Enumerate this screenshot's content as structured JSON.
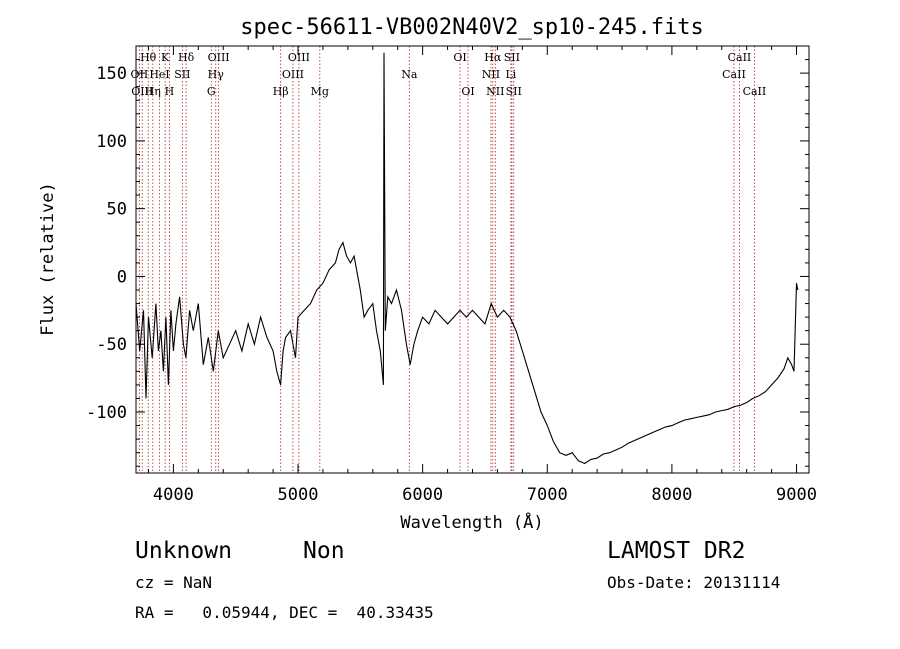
{
  "header": {
    "title": "spec-56611-VB002N40V2_sp10-245.fits"
  },
  "chart_data": {
    "type": "line",
    "title": "spec-56611-VB002N40V2_sp10-245.fits",
    "xlabel": "Wavelength (Å)",
    "ylabel": "Flux (relative)",
    "xlim": [
      3700,
      9100
    ],
    "ylim": [
      -145,
      170
    ],
    "x_ticks": [
      4000,
      5000,
      6000,
      7000,
      8000,
      9000
    ],
    "y_ticks": [
      -100,
      -50,
      0,
      50,
      100,
      150
    ],
    "grid": false,
    "series": [
      {
        "color": "#000000",
        "points": [
          [
            3700,
            -20
          ],
          [
            3730,
            -55
          ],
          [
            3760,
            -25
          ],
          [
            3780,
            -90
          ],
          [
            3800,
            -30
          ],
          [
            3830,
            -60
          ],
          [
            3860,
            -20
          ],
          [
            3880,
            -55
          ],
          [
            3900,
            -40
          ],
          [
            3920,
            -70
          ],
          [
            3940,
            -30
          ],
          [
            3960,
            -80
          ],
          [
            3980,
            -25
          ],
          [
            4000,
            -55
          ],
          [
            4020,
            -35
          ],
          [
            4050,
            -15
          ],
          [
            4080,
            -50
          ],
          [
            4100,
            -60
          ],
          [
            4130,
            -25
          ],
          [
            4160,
            -40
          ],
          [
            4200,
            -20
          ],
          [
            4240,
            -65
          ],
          [
            4280,
            -45
          ],
          [
            4320,
            -70
          ],
          [
            4360,
            -40
          ],
          [
            4400,
            -60
          ],
          [
            4450,
            -50
          ],
          [
            4500,
            -40
          ],
          [
            4550,
            -55
          ],
          [
            4600,
            -35
          ],
          [
            4650,
            -50
          ],
          [
            4700,
            -30
          ],
          [
            4750,
            -45
          ],
          [
            4800,
            -55
          ],
          [
            4830,
            -70
          ],
          [
            4860,
            -80
          ],
          [
            4880,
            -55
          ],
          [
            4900,
            -45
          ],
          [
            4940,
            -40
          ],
          [
            4980,
            -60
          ],
          [
            5000,
            -30
          ],
          [
            5050,
            -25
          ],
          [
            5100,
            -20
          ],
          [
            5150,
            -10
          ],
          [
            5200,
            -5
          ],
          [
            5250,
            5
          ],
          [
            5300,
            10
          ],
          [
            5330,
            20
          ],
          [
            5360,
            25
          ],
          [
            5390,
            15
          ],
          [
            5420,
            10
          ],
          [
            5450,
            15
          ],
          [
            5480,
            0
          ],
          [
            5500,
            -10
          ],
          [
            5530,
            -30
          ],
          [
            5560,
            -25
          ],
          [
            5600,
            -20
          ],
          [
            5630,
            -40
          ],
          [
            5660,
            -55
          ],
          [
            5685,
            -80
          ],
          [
            5690,
            165
          ],
          [
            5695,
            70
          ],
          [
            5700,
            -40
          ],
          [
            5720,
            -15
          ],
          [
            5750,
            -20
          ],
          [
            5790,
            -10
          ],
          [
            5830,
            -25
          ],
          [
            5870,
            -50
          ],
          [
            5900,
            -65
          ],
          [
            5930,
            -50
          ],
          [
            5960,
            -40
          ],
          [
            6000,
            -30
          ],
          [
            6050,
            -35
          ],
          [
            6100,
            -25
          ],
          [
            6150,
            -30
          ],
          [
            6200,
            -35
          ],
          [
            6250,
            -30
          ],
          [
            6300,
            -25
          ],
          [
            6350,
            -30
          ],
          [
            6400,
            -25
          ],
          [
            6450,
            -30
          ],
          [
            6500,
            -35
          ],
          [
            6550,
            -20
          ],
          [
            6600,
            -30
          ],
          [
            6650,
            -25
          ],
          [
            6700,
            -30
          ],
          [
            6750,
            -40
          ],
          [
            6800,
            -55
          ],
          [
            6850,
            -70
          ],
          [
            6900,
            -85
          ],
          [
            6950,
            -100
          ],
          [
            7000,
            -110
          ],
          [
            7050,
            -122
          ],
          [
            7100,
            -130
          ],
          [
            7150,
            -132
          ],
          [
            7200,
            -130
          ],
          [
            7250,
            -136
          ],
          [
            7300,
            -138
          ],
          [
            7350,
            -135
          ],
          [
            7400,
            -134
          ],
          [
            7450,
            -131
          ],
          [
            7500,
            -130
          ],
          [
            7550,
            -128
          ],
          [
            7600,
            -126
          ],
          [
            7650,
            -123
          ],
          [
            7700,
            -121
          ],
          [
            7750,
            -119
          ],
          [
            7800,
            -117
          ],
          [
            7850,
            -115
          ],
          [
            7900,
            -113
          ],
          [
            7950,
            -111
          ],
          [
            8000,
            -110
          ],
          [
            8050,
            -108
          ],
          [
            8100,
            -106
          ],
          [
            8150,
            -105
          ],
          [
            8200,
            -104
          ],
          [
            8250,
            -103
          ],
          [
            8300,
            -102
          ],
          [
            8350,
            -100
          ],
          [
            8400,
            -99
          ],
          [
            8450,
            -98
          ],
          [
            8500,
            -96
          ],
          [
            8550,
            -95
          ],
          [
            8600,
            -93
          ],
          [
            8650,
            -90
          ],
          [
            8700,
            -88
          ],
          [
            8750,
            -85
          ],
          [
            8800,
            -80
          ],
          [
            8850,
            -75
          ],
          [
            8900,
            -68
          ],
          [
            8930,
            -60
          ],
          [
            8960,
            -65
          ],
          [
            8980,
            -70
          ],
          [
            9000,
            -5
          ],
          [
            9010,
            -10
          ]
        ]
      }
    ],
    "lines": [
      {
        "label": "Hθ",
        "x": 3798,
        "row": 0
      },
      {
        "label": "OII",
        "x": 3727,
        "row": 1
      },
      {
        "label": "HeI",
        "x": 3889,
        "row": 1
      },
      {
        "label": "OIII",
        "x": 3750,
        "row": 2
      },
      {
        "label": "Hη",
        "x": 3835,
        "row": 2
      },
      {
        "label": "K",
        "x": 3934,
        "row": 0
      },
      {
        "label": "H",
        "x": 3968,
        "row": 2
      },
      {
        "label": "SII",
        "x": 4072,
        "row": 1
      },
      {
        "label": "Hδ",
        "x": 4102,
        "row": 0
      },
      {
        "label": "OIII",
        "x": 4363,
        "row": 0
      },
      {
        "label": "Hγ",
        "x": 4340,
        "row": 1
      },
      {
        "label": "G",
        "x": 4304,
        "row": 2
      },
      {
        "label": "OIII",
        "x": 5007,
        "row": 0
      },
      {
        "label": "OIII",
        "x": 4959,
        "row": 1
      },
      {
        "label": "Hβ",
        "x": 4861,
        "row": 2
      },
      {
        "label": "Mg",
        "x": 5175,
        "row": 2
      },
      {
        "label": "Na",
        "x": 5893,
        "row": 1
      },
      {
        "label": "OI",
        "x": 6300,
        "row": 0
      },
      {
        "label": "OI",
        "x": 6364,
        "row": 2
      },
      {
        "label": "Hα",
        "x": 6563,
        "row": 0
      },
      {
        "label": "SII",
        "x": 6716,
        "row": 0
      },
      {
        "label": "NII",
        "x": 6548,
        "row": 1
      },
      {
        "label": "Li",
        "x": 6708,
        "row": 1
      },
      {
        "label": "NII",
        "x": 6583,
        "row": 2
      },
      {
        "label": "SII",
        "x": 6731,
        "row": 2
      },
      {
        "label": "CaII",
        "x": 8542,
        "row": 0
      },
      {
        "label": "CaII",
        "x": 8498,
        "row": 1
      },
      {
        "label": "CaII",
        "x": 8662,
        "row": 2
      }
    ]
  },
  "info": {
    "class_label": "Unknown",
    "subclass_label": "Non",
    "survey_label": "LAMOST DR2",
    "cz_label": "cz = NaN",
    "obs_date_label": "Obs-Date: 20131114",
    "coords_label": "RA =   0.05944, DEC =  40.33435"
  }
}
